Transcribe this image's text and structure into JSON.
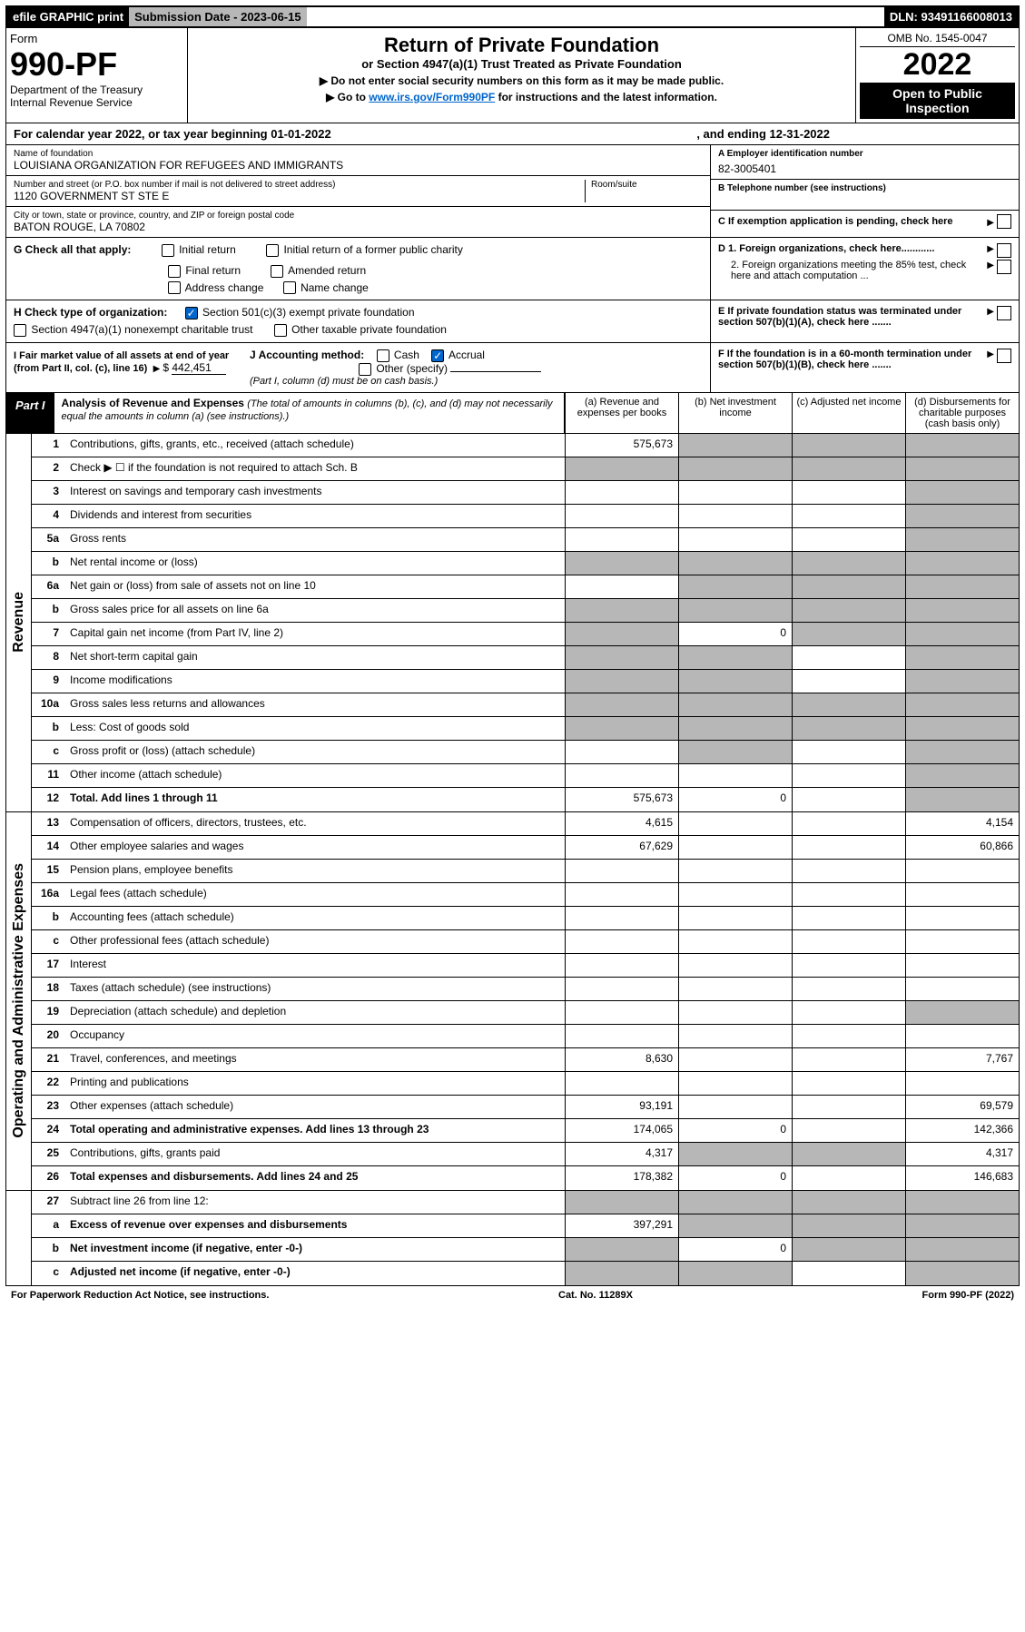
{
  "topbar": {
    "efile": "efile GRAPHIC print",
    "subm": "Submission Date - 2023-06-15",
    "dln": "DLN: 93491166008013"
  },
  "header": {
    "form_label": "Form",
    "form_num": "990-PF",
    "dept": "Department of the Treasury",
    "irs": "Internal Revenue Service",
    "title": "Return of Private Foundation",
    "subtitle": "or Section 4947(a)(1) Trust Treated as Private Foundation",
    "instr1": "▶ Do not enter social security numbers on this form as it may be made public.",
    "instr2_pre": "▶ Go to ",
    "instr2_link": "www.irs.gov/Form990PF",
    "instr2_post": " for instructions and the latest information.",
    "omb": "OMB No. 1545-0047",
    "year": "2022",
    "open_pub": "Open to Public Inspection"
  },
  "cal_year": {
    "pre": "For calendar year 2022, or tax year beginning 01-01-2022",
    "mid": ", and ending 12-31-2022"
  },
  "info": {
    "name_lbl": "Name of foundation",
    "name": "LOUISIANA ORGANIZATION FOR REFUGEES AND IMMIGRANTS",
    "addr_lbl": "Number and street (or P.O. box number if mail is not delivered to street address)",
    "addr": "1120 GOVERNMENT ST STE E",
    "room_lbl": "Room/suite",
    "city_lbl": "City or town, state or province, country, and ZIP or foreign postal code",
    "city": "BATON ROUGE, LA  70802",
    "ein_lbl": "A Employer identification number",
    "ein": "82-3005401",
    "tel_lbl": "B Telephone number (see instructions)",
    "c_lbl": "C If exemption application is pending, check here",
    "d1": "D 1. Foreign organizations, check here............",
    "d2": "2. Foreign organizations meeting the 85% test, check here and attach computation ...",
    "e": "E  If private foundation status was terminated under section 507(b)(1)(A), check here .......",
    "f": "F  If the foundation is in a 60-month termination under section 507(b)(1)(B), check here ......."
  },
  "g": {
    "label": "G Check all that apply:",
    "items": [
      "Initial return",
      "Initial return of a former public charity",
      "Final return",
      "Amended return",
      "Address change",
      "Name change"
    ]
  },
  "h": {
    "label": "H Check type of organization:",
    "opt1": "Section 501(c)(3) exempt private foundation",
    "opt2": "Section 4947(a)(1) nonexempt charitable trust",
    "opt3": "Other taxable private foundation"
  },
  "i": {
    "label": "I Fair market value of all assets at end of year (from Part II, col. (c), line 16)",
    "value": "442,451"
  },
  "j": {
    "label": "J Accounting method:",
    "cash": "Cash",
    "accrual": "Accrual",
    "other": "Other (specify)",
    "note": "(Part I, column (d) must be on cash basis.)"
  },
  "part1": {
    "label": "Part I",
    "title": "Analysis of Revenue and Expenses",
    "note": "(The total of amounts in columns (b), (c), and (d) may not necessarily equal the amounts in column (a) (see instructions).)",
    "colA": "(a)   Revenue and expenses per books",
    "colB": "(b)   Net investment income",
    "colC": "(c)   Adjusted net income",
    "colD": "(d)   Disbursements for charitable purposes (cash basis only)"
  },
  "side_labels": {
    "rev": "Revenue",
    "exp": "Operating and Administrative Expenses"
  },
  "rows_rev": [
    {
      "n": "1",
      "d": "Contributions, gifts, grants, etc., received (attach schedule)",
      "a": "575,673",
      "shade": [
        false,
        true,
        true,
        true
      ]
    },
    {
      "n": "2",
      "d": "Check ▶ ☐ if the foundation is not required to attach Sch. B",
      "shade": [
        true,
        true,
        true,
        true
      ]
    },
    {
      "n": "3",
      "d": "Interest on savings and temporary cash investments",
      "shade": [
        false,
        false,
        false,
        true
      ]
    },
    {
      "n": "4",
      "d": "Dividends and interest from securities",
      "shade": [
        false,
        false,
        false,
        true
      ]
    },
    {
      "n": "5a",
      "d": "Gross rents",
      "shade": [
        false,
        false,
        false,
        true
      ]
    },
    {
      "n": "b",
      "d": "Net rental income or (loss)",
      "shade": [
        true,
        true,
        true,
        true
      ]
    },
    {
      "n": "6a",
      "d": "Net gain or (loss) from sale of assets not on line 10",
      "shade": [
        false,
        true,
        true,
        true
      ]
    },
    {
      "n": "b",
      "d": "Gross sales price for all assets on line 6a",
      "shade": [
        true,
        true,
        true,
        true
      ]
    },
    {
      "n": "7",
      "d": "Capital gain net income (from Part IV, line 2)",
      "b": "0",
      "shade": [
        true,
        false,
        true,
        true
      ]
    },
    {
      "n": "8",
      "d": "Net short-term capital gain",
      "shade": [
        true,
        true,
        false,
        true
      ]
    },
    {
      "n": "9",
      "d": "Income modifications",
      "shade": [
        true,
        true,
        false,
        true
      ]
    },
    {
      "n": "10a",
      "d": "Gross sales less returns and allowances",
      "shade": [
        true,
        true,
        true,
        true
      ]
    },
    {
      "n": "b",
      "d": "Less: Cost of goods sold",
      "shade": [
        true,
        true,
        true,
        true
      ]
    },
    {
      "n": "c",
      "d": "Gross profit or (loss) (attach schedule)",
      "shade": [
        false,
        true,
        false,
        true
      ]
    },
    {
      "n": "11",
      "d": "Other income (attach schedule)",
      "shade": [
        false,
        false,
        false,
        true
      ]
    },
    {
      "n": "12",
      "d": "Total. Add lines 1 through 11",
      "a": "575,673",
      "b": "0",
      "bold": true,
      "shade": [
        false,
        false,
        false,
        true
      ]
    }
  ],
  "rows_exp": [
    {
      "n": "13",
      "d": "Compensation of officers, directors, trustees, etc.",
      "a": "4,615",
      "dd": "4,154",
      "shade": [
        false,
        false,
        false,
        false
      ]
    },
    {
      "n": "14",
      "d": "Other employee salaries and wages",
      "a": "67,629",
      "dd": "60,866",
      "shade": [
        false,
        false,
        false,
        false
      ]
    },
    {
      "n": "15",
      "d": "Pension plans, employee benefits",
      "shade": [
        false,
        false,
        false,
        false
      ]
    },
    {
      "n": "16a",
      "d": "Legal fees (attach schedule)",
      "shade": [
        false,
        false,
        false,
        false
      ]
    },
    {
      "n": "b",
      "d": "Accounting fees (attach schedule)",
      "shade": [
        false,
        false,
        false,
        false
      ]
    },
    {
      "n": "c",
      "d": "Other professional fees (attach schedule)",
      "shade": [
        false,
        false,
        false,
        false
      ]
    },
    {
      "n": "17",
      "d": "Interest",
      "shade": [
        false,
        false,
        false,
        false
      ]
    },
    {
      "n": "18",
      "d": "Taxes (attach schedule) (see instructions)",
      "shade": [
        false,
        false,
        false,
        false
      ]
    },
    {
      "n": "19",
      "d": "Depreciation (attach schedule) and depletion",
      "shade": [
        false,
        false,
        false,
        true
      ]
    },
    {
      "n": "20",
      "d": "Occupancy",
      "shade": [
        false,
        false,
        false,
        false
      ]
    },
    {
      "n": "21",
      "d": "Travel, conferences, and meetings",
      "a": "8,630",
      "dd": "7,767",
      "shade": [
        false,
        false,
        false,
        false
      ]
    },
    {
      "n": "22",
      "d": "Printing and publications",
      "shade": [
        false,
        false,
        false,
        false
      ]
    },
    {
      "n": "23",
      "d": "Other expenses (attach schedule)",
      "a": "93,191",
      "dd": "69,579",
      "shade": [
        false,
        false,
        false,
        false
      ]
    },
    {
      "n": "24",
      "d": "Total operating and administrative expenses. Add lines 13 through 23",
      "a": "174,065",
      "b": "0",
      "dd": "142,366",
      "bold": true,
      "shade": [
        false,
        false,
        false,
        false
      ]
    },
    {
      "n": "25",
      "d": "Contributions, gifts, grants paid",
      "a": "4,317",
      "dd": "4,317",
      "shade": [
        false,
        true,
        true,
        false
      ]
    },
    {
      "n": "26",
      "d": "Total expenses and disbursements. Add lines 24 and 25",
      "a": "178,382",
      "b": "0",
      "dd": "146,683",
      "bold": true,
      "shade": [
        false,
        false,
        false,
        false
      ]
    }
  ],
  "rows_bottom": [
    {
      "n": "27",
      "d": "Subtract line 26 from line 12:",
      "shade": [
        true,
        true,
        true,
        true
      ]
    },
    {
      "n": "a",
      "d": "Excess of revenue over expenses and disbursements",
      "a": "397,291",
      "bold": true,
      "shade": [
        false,
        true,
        true,
        true
      ]
    },
    {
      "n": "b",
      "d": "Net investment income (if negative, enter -0-)",
      "b": "0",
      "bold": true,
      "shade": [
        true,
        false,
        true,
        true
      ]
    },
    {
      "n": "c",
      "d": "Adjusted net income (if negative, enter -0-)",
      "bold": true,
      "shade": [
        true,
        true,
        false,
        true
      ]
    }
  ],
  "footer": {
    "left": "For Paperwork Reduction Act Notice, see instructions.",
    "mid": "Cat. No. 11289X",
    "right": "Form 990-PF (2022)"
  }
}
